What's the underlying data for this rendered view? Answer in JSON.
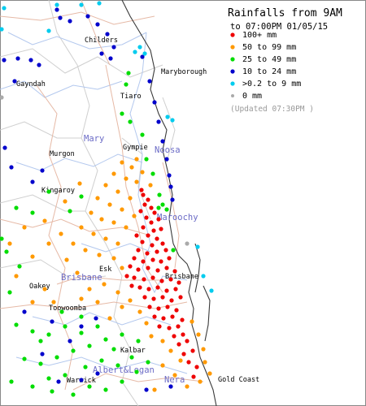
{
  "legend": {
    "title": "Rainfalls from 9AM",
    "subtitle": "to 07:00PM 01/05/15",
    "items": [
      {
        "label": "100+ mm",
        "color": "#ee0000"
      },
      {
        "label": "50  to 99 mm",
        "color": "#ff9900"
      },
      {
        "label": "25  to 49 mm",
        "color": "#00dd00"
      },
      {
        "label": "10  to 24 mm",
        "color": "#0000cc"
      },
      {
        "label": ">0.2 to 9 mm",
        "color": "#00ccee"
      },
      {
        "label": "0 mm",
        "color": "#aaaaaa"
      }
    ],
    "updated": "(Updated 07:30PM  )"
  },
  "towns": {
    "childers": "Childers",
    "maryborough": "Maryborough",
    "gayndah": "Gayndah",
    "tiaro": "Tiaro",
    "murgon": "Murgon",
    "gympie": "Gympie",
    "kingaroy": "Kingaroy",
    "esk": "Esk",
    "brisbane": "Brisbane",
    "oakey": "Oakey",
    "toowoomba": "Toowoomba",
    "kalbar": "Kalbar",
    "warwick": "Warwick",
    "gold_coast": "Gold Coast"
  },
  "regions": {
    "mary": "Mary",
    "noosa": "Noosa",
    "maroochy": "Maroochy",
    "brisbane": "Brisbane",
    "albert_logan": "Albert&Logan",
    "nerang": "Nera"
  },
  "colors": {
    "coast": "#3a3a3a",
    "rivers": "#a9c3e8",
    "roads": "#e3b8a8",
    "borders": "#c8c8c8"
  }
}
